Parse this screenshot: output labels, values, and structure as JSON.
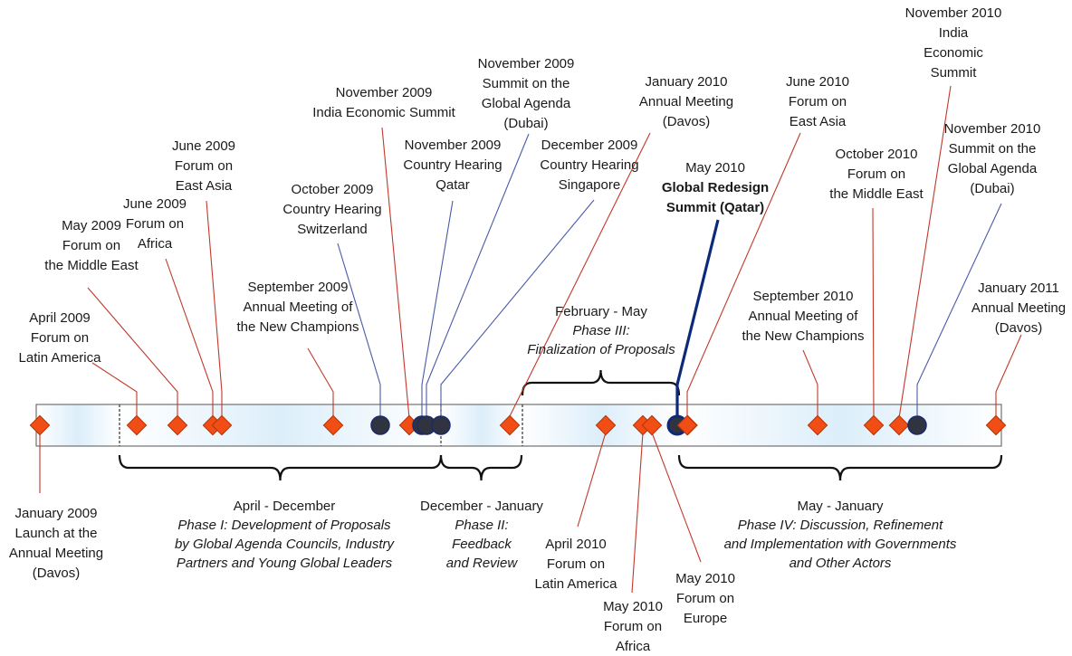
{
  "colors": {
    "event_diamond": "#f04e15",
    "event_diamond_stroke": "#b83208",
    "hearing_circle": "#2f3440",
    "hearing_circle_stroke": "#1b2a6b",
    "event_line": "#c0392b",
    "hearing_line": "#4a5aa8",
    "summit_line": "#0d2a7a",
    "band_fill_edge": "#ffffff",
    "band_fill_mid": "#dceefa",
    "band_stroke": "#555555",
    "brace": "#111111"
  },
  "events": [
    {
      "id": "jan-2009",
      "kind": "event",
      "lines": [
        "January 2009",
        "Launch at the",
        "Annual Meeting",
        "(Davos)"
      ]
    },
    {
      "id": "apr-2009",
      "kind": "event",
      "lines": [
        "April 2009",
        "Forum on",
        "Latin America"
      ]
    },
    {
      "id": "may-2009",
      "kind": "event",
      "lines": [
        "May 2009",
        "Forum on",
        "the Middle East"
      ]
    },
    {
      "id": "jun-2009-africa",
      "kind": "event",
      "lines": [
        "June 2009",
        "Forum on",
        "Africa"
      ]
    },
    {
      "id": "jun-2009-eastasia",
      "kind": "event",
      "lines": [
        "June 2009",
        "Forum on",
        "East Asia"
      ]
    },
    {
      "id": "sep-2009",
      "kind": "event",
      "lines": [
        "September 2009",
        "Annual Meeting of",
        "the New Champions"
      ]
    },
    {
      "id": "oct-2009",
      "kind": "hearing",
      "lines": [
        "October 2009",
        "Country Hearing",
        "Switzerland"
      ]
    },
    {
      "id": "nov-2009-india",
      "kind": "event",
      "lines": [
        "November 2009",
        "India Economic Summit"
      ]
    },
    {
      "id": "nov-2009-qatar",
      "kind": "hearing",
      "lines": [
        "November 2009",
        "Country Hearing",
        "Qatar"
      ]
    },
    {
      "id": "nov-2009-dubai",
      "kind": "hearing",
      "lines": [
        "November 2009",
        "Summit on the",
        "Global Agenda",
        "(Dubai)"
      ]
    },
    {
      "id": "dec-2009",
      "kind": "hearing",
      "lines": [
        "December 2009",
        "Country Hearing",
        "Singapore"
      ]
    },
    {
      "id": "jan-2010",
      "kind": "event",
      "lines": [
        "January 2010",
        "Annual Meeting",
        "(Davos)"
      ]
    },
    {
      "id": "apr-2010",
      "kind": "event",
      "lines": [
        "April 2010",
        "Forum on",
        "Latin America"
      ]
    },
    {
      "id": "may-2010-africa",
      "kind": "event",
      "lines": [
        "May 2010",
        "Forum on",
        "Africa"
      ]
    },
    {
      "id": "may-2010-europe",
      "kind": "event",
      "lines": [
        "May 2010",
        "Forum on",
        "Europe"
      ]
    },
    {
      "id": "may-2010-summit",
      "kind": "summit",
      "lines": [
        "May 2010",
        "Global Redesign",
        "Summit (Qatar)"
      ]
    },
    {
      "id": "jun-2010",
      "kind": "event",
      "lines": [
        "June 2010",
        "Forum on",
        "East Asia"
      ]
    },
    {
      "id": "sep-2010",
      "kind": "event",
      "lines": [
        "September 2010",
        "Annual Meeting of",
        "the New Champions"
      ]
    },
    {
      "id": "oct-2010",
      "kind": "event",
      "lines": [
        "October 2010",
        "Forum on",
        "the Middle East"
      ]
    },
    {
      "id": "nov-2010-india",
      "kind": "event",
      "lines": [
        "November 2010",
        "India",
        "Economic",
        "Summit"
      ]
    },
    {
      "id": "nov-2010-dubai",
      "kind": "hearing",
      "lines": [
        "November 2010",
        "Summit on the",
        "Global Agenda",
        "(Dubai)"
      ]
    },
    {
      "id": "jan-2011",
      "kind": "event",
      "lines": [
        "January 2011",
        "Annual Meeting",
        "(Davos)"
      ]
    }
  ],
  "phases": [
    {
      "id": "phase-1",
      "period": "April - December",
      "name": "Phase I: Development of Proposals",
      "detail": [
        "by Global Agenda Councils, Industry",
        "Partners and Young Global Leaders"
      ]
    },
    {
      "id": "phase-2",
      "period": "December - January",
      "name": "Phase II:",
      "detail": [
        "Feedback",
        "and Review"
      ]
    },
    {
      "id": "phase-3",
      "period": "February - May",
      "name": "Phase III:",
      "detail": [
        "Finalization of Proposals"
      ]
    },
    {
      "id": "phase-4",
      "period": "May - January",
      "name": "Phase IV: Discussion, Refinement",
      "detail": [
        "and Implementation with Governments",
        "and Other Actors"
      ]
    }
  ]
}
